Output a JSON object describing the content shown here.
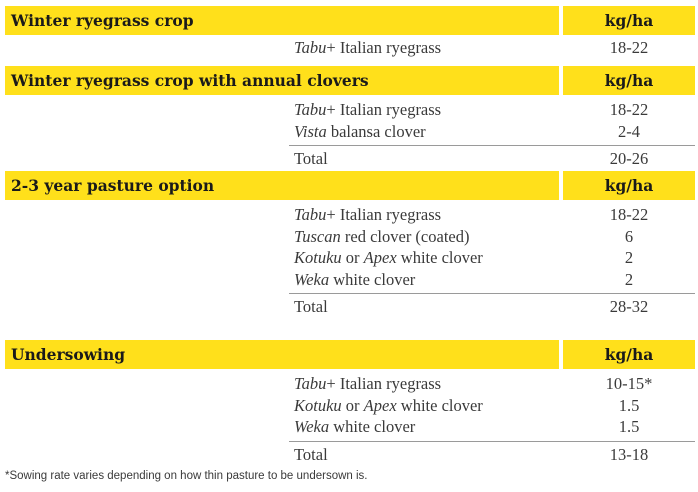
{
  "sections": [
    {
      "title": "Winter ryegrass crop",
      "unit": "kg/ha",
      "rows": [
        {
          "name_italic": "Tabu",
          "name_rest": "+ Italian ryegrass",
          "value": "18-22"
        }
      ]
    },
    {
      "title": "Winter ryegrass crop with annual clovers",
      "unit": "kg/ha",
      "rows": [
        {
          "name_italic": "Tabu",
          "name_rest": "+ Italian ryegrass",
          "value": "18-22"
        },
        {
          "name_italic": "Vista",
          "name_rest": " balansa clover",
          "value": "2-4"
        }
      ],
      "total": {
        "label": "Total",
        "value": "20-26"
      }
    },
    {
      "title": "2-3 year pasture option",
      "unit": "kg/ha",
      "rows": [
        {
          "name_italic": "Tabu",
          "name_rest": "+ Italian ryegrass",
          "value": "18-22"
        },
        {
          "name_italic": "Tuscan",
          "name_rest": " red clover (coated)",
          "value": "6"
        },
        {
          "name_italic": "Kotuku",
          "name_mid": " or ",
          "name_italic2": "Apex",
          "name_rest": " white clover",
          "value": "2"
        },
        {
          "name_italic": "Weka",
          "name_rest": " white clover",
          "value": "2"
        }
      ],
      "total": {
        "label": "Total",
        "value": "28-32"
      }
    },
    {
      "title": "Undersowing",
      "unit": "kg/ha",
      "rows": [
        {
          "name_italic": "Tabu",
          "name_rest": "+ Italian ryegrass",
          "value": "10-15*"
        },
        {
          "name_italic": "Kotuku",
          "name_mid": " or ",
          "name_italic2": "Apex",
          "name_rest": " white clover",
          "value": "1.5"
        },
        {
          "name_italic": "Weka",
          "name_rest": " white clover",
          "value": "1.5"
        }
      ],
      "total": {
        "label": "Total",
        "value": "13-18"
      }
    }
  ],
  "footnote": "*Sowing rate varies depending on how thin pasture to be undersown is.",
  "colors": {
    "header_fill": "#ffe01b",
    "rule": "#9a9a9a",
    "text": "#3a3a3a"
  }
}
